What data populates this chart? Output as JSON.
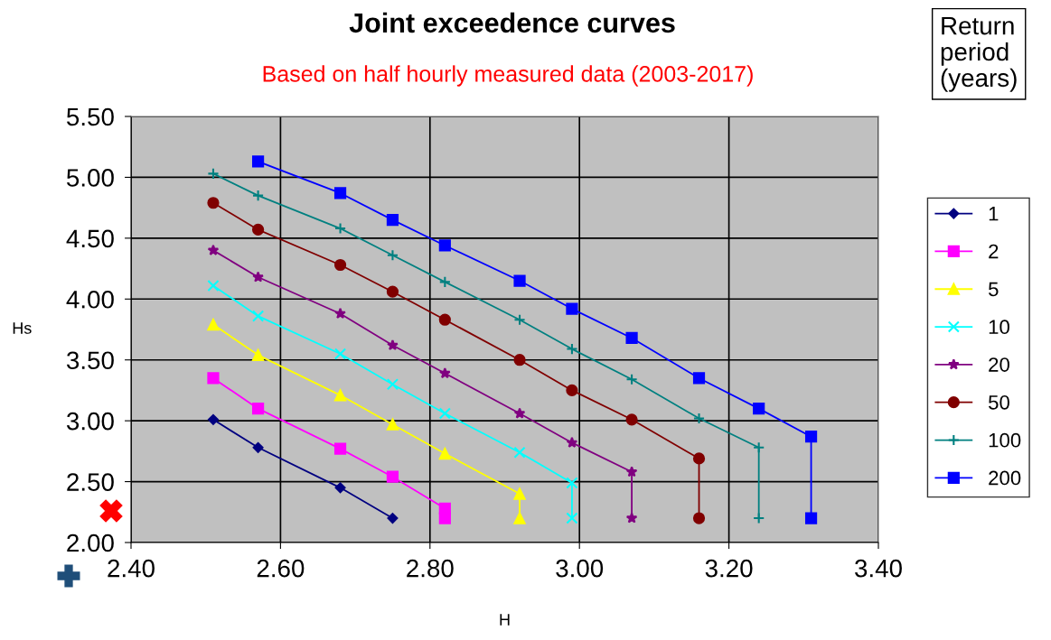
{
  "chart_data": {
    "type": "line",
    "title": "Joint exceedence curves",
    "subtitle": "Based on half hourly measured data (2003-2017)",
    "xlabel": "H",
    "ylabel": "Hs",
    "legend_title": "Return\nperiod\n(years)",
    "xlim": [
      2.4,
      3.4
    ],
    "ylim": [
      2.0,
      5.5
    ],
    "xticks": [
      {
        "value": 2.4,
        "label": "2.40"
      },
      {
        "value": 2.6,
        "label": "2.60"
      },
      {
        "value": 2.8,
        "label": "2.80"
      },
      {
        "value": 3.0,
        "label": "3.00"
      },
      {
        "value": 3.2,
        "label": "3.20"
      },
      {
        "value": 3.4,
        "label": "3.40"
      }
    ],
    "yticks": [
      {
        "value": 2.0,
        "label": "2.00"
      },
      {
        "value": 2.5,
        "label": "2.50"
      },
      {
        "value": 3.0,
        "label": "3.00"
      },
      {
        "value": 3.5,
        "label": "3.50"
      },
      {
        "value": 4.0,
        "label": "4.00"
      },
      {
        "value": 4.5,
        "label": "4.50"
      },
      {
        "value": 5.0,
        "label": "5.00"
      },
      {
        "value": 5.5,
        "label": "5.50"
      }
    ],
    "grid": true,
    "legend": "right",
    "line_style": "solid",
    "series": [
      {
        "name": "1",
        "color": "#000080",
        "marker": "diamond",
        "x": [
          2.51,
          2.57,
          2.68,
          2.75
        ],
        "values": [
          3.01,
          2.78,
          2.45,
          2.2
        ]
      },
      {
        "name": "2",
        "color": "#ff00ff",
        "marker": "square",
        "x": [
          2.51,
          2.57,
          2.68,
          2.75,
          2.82,
          2.82
        ],
        "values": [
          3.35,
          3.1,
          2.77,
          2.54,
          2.28,
          2.2
        ]
      },
      {
        "name": "5",
        "color": "#ffff00",
        "marker": "triangle",
        "x": [
          2.51,
          2.57,
          2.68,
          2.75,
          2.82,
          2.92,
          2.92
        ],
        "values": [
          3.79,
          3.54,
          3.21,
          2.97,
          2.73,
          2.4,
          2.2
        ]
      },
      {
        "name": "10",
        "color": "#00ffff",
        "marker": "cross",
        "x": [
          2.51,
          2.57,
          2.68,
          2.75,
          2.82,
          2.92,
          2.99,
          2.99
        ],
        "values": [
          4.11,
          3.86,
          3.55,
          3.3,
          3.06,
          2.74,
          2.49,
          2.2
        ]
      },
      {
        "name": "20",
        "color": "#800080",
        "marker": "star",
        "x": [
          2.51,
          2.57,
          2.68,
          2.75,
          2.82,
          2.92,
          2.99,
          3.07,
          3.07
        ],
        "values": [
          4.4,
          4.18,
          3.88,
          3.62,
          3.39,
          3.06,
          2.82,
          2.58,
          2.2
        ]
      },
      {
        "name": "50",
        "color": "#800000",
        "marker": "circle",
        "x": [
          2.51,
          2.57,
          2.68,
          2.75,
          2.82,
          2.92,
          2.99,
          3.07,
          3.16,
          3.16
        ],
        "values": [
          4.79,
          4.57,
          4.28,
          4.06,
          3.83,
          3.5,
          3.25,
          3.01,
          2.69,
          2.2
        ]
      },
      {
        "name": "100",
        "color": "#008080",
        "marker": "plus",
        "x": [
          2.51,
          2.57,
          2.68,
          2.75,
          2.82,
          2.92,
          2.99,
          3.07,
          3.16,
          3.24,
          3.24
        ],
        "values": [
          5.03,
          4.85,
          4.58,
          4.36,
          4.14,
          3.83,
          3.59,
          3.34,
          3.02,
          2.78,
          2.2
        ]
      },
      {
        "name": "200",
        "color": "#0000ff",
        "marker": "square",
        "x": [
          2.57,
          2.68,
          2.75,
          2.82,
          2.92,
          2.99,
          3.07,
          3.16,
          3.24,
          3.31,
          3.31
        ],
        "values": [
          5.13,
          4.87,
          4.65,
          4.44,
          4.15,
          3.92,
          3.68,
          3.35,
          3.1,
          2.87,
          2.2
        ]
      }
    ]
  }
}
